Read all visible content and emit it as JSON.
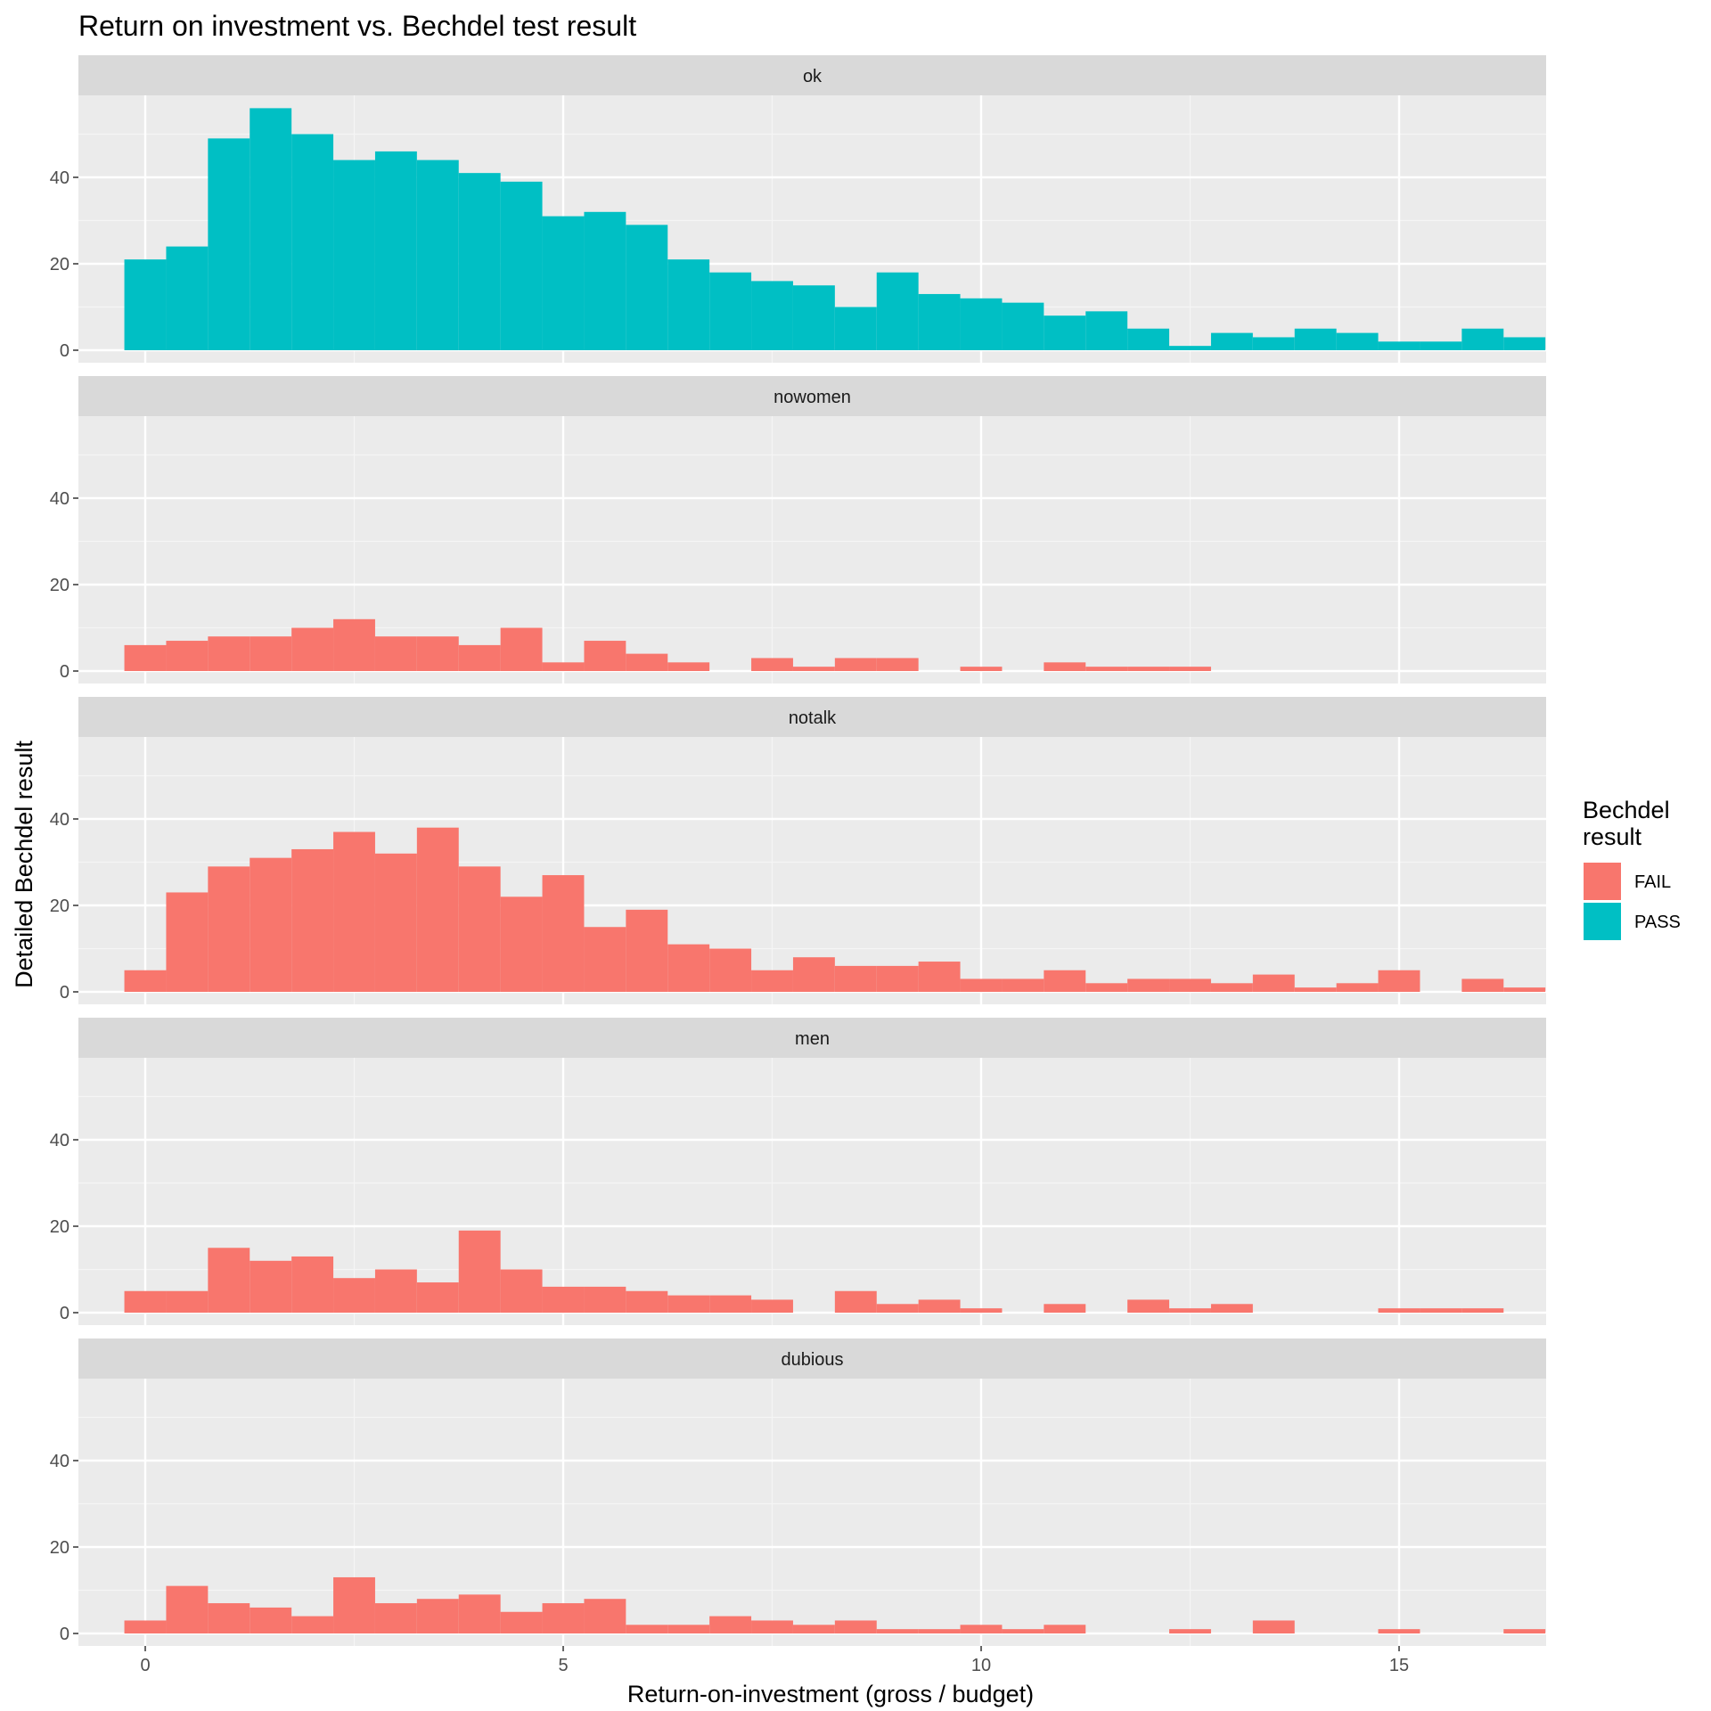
{
  "chart_data": {
    "type": "bar",
    "subtype": "faceted-histogram",
    "title": "Return on investment vs. Bechdel test result",
    "xlabel": "Return-on-investment (gross / budget)",
    "ylabel": "Detailed Bechdel result",
    "xlim": [
      -0.8,
      16.8
    ],
    "ylim": [
      0,
      60
    ],
    "x_ticks": [
      0,
      5,
      10,
      15
    ],
    "y_ticks": [
      0,
      20,
      40
    ],
    "grid": true,
    "bin_width": 0.5,
    "bin_start": -0.25,
    "legend": {
      "title_lines": [
        "Bechdel",
        "result"
      ],
      "placement": "right",
      "entries": [
        {
          "label": "FAIL",
          "color": "#F8766D"
        },
        {
          "label": "PASS",
          "color": "#00BFC4"
        }
      ]
    },
    "facets": [
      {
        "name": "ok",
        "result": "PASS",
        "color": "#00BFC4",
        "counts": [
          21,
          24,
          49,
          56,
          50,
          44,
          46,
          44,
          41,
          39,
          31,
          32,
          29,
          21,
          18,
          16,
          15,
          10,
          18,
          13,
          12,
          11,
          8,
          9,
          5,
          1,
          4,
          3,
          5,
          4,
          2,
          2,
          5,
          3
        ]
      },
      {
        "name": "nowomen",
        "result": "FAIL",
        "color": "#F8766D",
        "counts": [
          6,
          7,
          8,
          8,
          10,
          12,
          8,
          8,
          6,
          10,
          2,
          7,
          4,
          2,
          0,
          3,
          1,
          3,
          3,
          0,
          1,
          0,
          2,
          1,
          1,
          1,
          0,
          0,
          0,
          0,
          0,
          0,
          0,
          0
        ]
      },
      {
        "name": "notalk",
        "result": "FAIL",
        "color": "#F8766D",
        "counts": [
          5,
          23,
          29,
          31,
          33,
          37,
          32,
          38,
          29,
          22,
          27,
          15,
          19,
          11,
          10,
          5,
          8,
          6,
          6,
          7,
          3,
          3,
          5,
          2,
          3,
          3,
          2,
          4,
          1,
          2,
          5,
          0,
          3,
          1
        ]
      },
      {
        "name": "men",
        "result": "FAIL",
        "color": "#F8766D",
        "counts": [
          5,
          5,
          15,
          12,
          13,
          8,
          10,
          7,
          19,
          10,
          6,
          6,
          5,
          4,
          4,
          3,
          0,
          5,
          2,
          3,
          1,
          0,
          2,
          0,
          3,
          1,
          2,
          0,
          0,
          0,
          1,
          1,
          1,
          0
        ]
      },
      {
        "name": "dubious",
        "result": "FAIL",
        "color": "#F8766D",
        "counts": [
          3,
          11,
          7,
          6,
          4,
          13,
          7,
          8,
          9,
          5,
          7,
          8,
          2,
          2,
          4,
          3,
          2,
          3,
          1,
          1,
          2,
          1,
          2,
          0,
          0,
          1,
          0,
          3,
          0,
          0,
          1,
          0,
          0,
          1
        ]
      }
    ]
  }
}
